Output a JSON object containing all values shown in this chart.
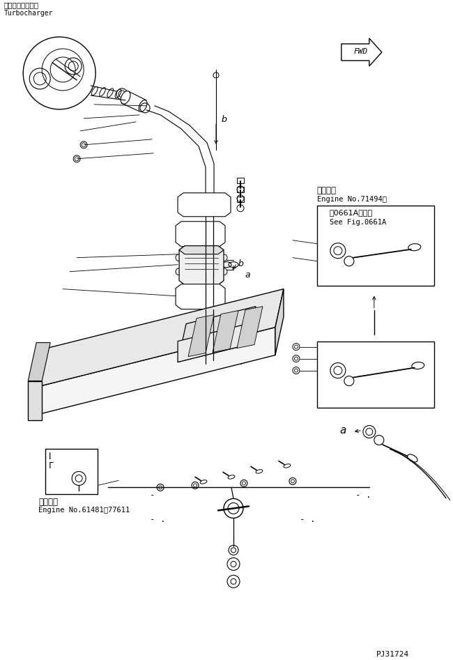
{
  "bg_color": "#ffffff",
  "fig_width": 6.5,
  "fig_height": 9.47,
  "dpi": 100,
  "turbocharger_label_jp": "ターボチャージャ",
  "turbocharger_label_en": "Turbocharger",
  "engine_label1_jp": "適用号機",
  "engine_label1_en": "Engine No.61481～77611",
  "engine_label2_jp": "適用号機",
  "engine_label2_en": "Engine No.71494～",
  "see_fig_jp": "第0661A図参照",
  "see_fig_en": "See Fig.0661A",
  "fwd_label": "FWD",
  "page_id": "PJ31724",
  "label_a": "a",
  "label_b": "b",
  "label_l": "l",
  "dash1": "- .",
  "dash2": "- -"
}
